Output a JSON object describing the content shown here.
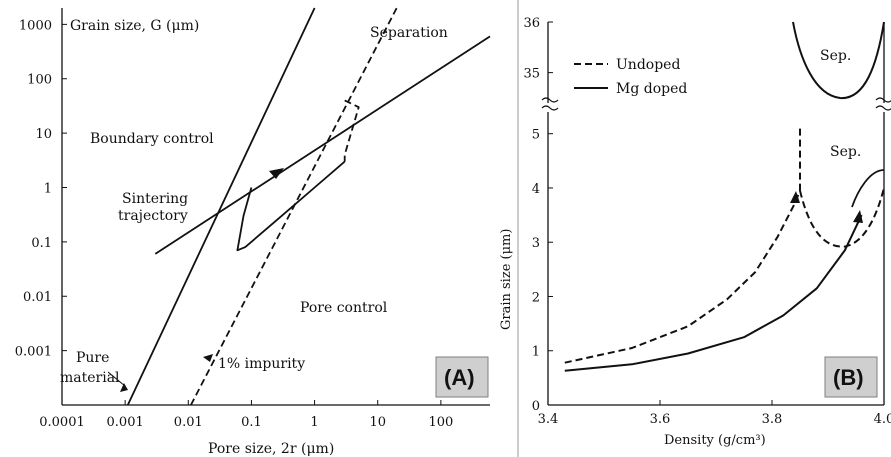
{
  "chart_data": [
    {
      "panel": "(A)",
      "type": "line",
      "xscale": "log",
      "yscale": "log",
      "xlabel": "Pore size, 2r (μm)",
      "ylabel": "Grain size, G (μm)",
      "xticks": [
        "0.0001",
        "0.001",
        "0.01",
        "0.1",
        "1",
        "10",
        "100"
      ],
      "yticks": [
        "1000",
        "100",
        "10",
        "1",
        "0.1",
        "0.01",
        "0.001"
      ],
      "xlim": [
        0.0001,
        600
      ],
      "ylim": [
        0.0001,
        2000
      ],
      "annotations": {
        "boundary": "Boundary control",
        "pore": "Pore control",
        "separation": "Separation",
        "trajectory_line1": "Sintering",
        "trajectory_line2": "trajectory",
        "pure_line1": "Pure",
        "pure_line2": "material",
        "impurity": "1% impurity"
      },
      "series": [
        {
          "style": "solid",
          "x": [
            0.0011,
            1.0
          ],
          "y": [
            0.0001,
            2000
          ]
        },
        {
          "style": "solid",
          "x": [
            0.003,
            600
          ],
          "y": [
            0.06,
            600
          ]
        },
        {
          "style": "dashed",
          "x": [
            0.011,
            20
          ],
          "y": [
            0.0001,
            2000
          ]
        },
        {
          "style": "solid",
          "x": [
            0.1,
            0.075,
            0.06,
            0.08,
            0.3,
            1,
            3
          ],
          "y": [
            1,
            0.3,
            0.07,
            0.08,
            0.3,
            1,
            3
          ]
        },
        {
          "style": "dashed",
          "x": [
            3,
            5,
            3,
            3
          ],
          "y": [
            40,
            30,
            4,
            3
          ]
        }
      ]
    },
    {
      "panel": "(B)",
      "type": "line",
      "xlabel": "Density (g/cm³)",
      "ylabel": "Grain size (μm)",
      "xticks": [
        "3.4",
        "3.6",
        "3.8",
        "4.0"
      ],
      "yticks_lower": [
        "0",
        "1",
        "2",
        "3",
        "4",
        "5"
      ],
      "yticks_upper": [
        "35",
        "36"
      ],
      "xlim": [
        3.4,
        4.0
      ],
      "ylim_lower": [
        0,
        5.4
      ],
      "ylim_upper": [
        34.4,
        36
      ],
      "legend_position": "top-left",
      "annotations": {
        "sep_upper": "Sep.",
        "sep_lower": "Sep."
      },
      "series": [
        {
          "name": "Undoped",
          "style": "dashed",
          "x": [
            3.43,
            3.55,
            3.65,
            3.72,
            3.77,
            3.81,
            3.84,
            3.85
          ],
          "y": [
            0.78,
            1.05,
            1.45,
            1.95,
            2.45,
            3.1,
            3.7,
            3.95
          ]
        },
        {
          "name": "Mg doped",
          "style": "solid",
          "x": [
            3.43,
            3.55,
            3.65,
            3.75,
            3.82,
            3.88,
            3.93,
            3.96
          ],
          "y": [
            0.63,
            0.75,
            0.95,
            1.25,
            1.65,
            2.15,
            2.85,
            3.5
          ]
        }
      ]
    }
  ],
  "legend": {
    "undoped": "Undoped",
    "mg_doped": "Mg doped"
  },
  "panel_tags": {
    "a": "(A)",
    "b": "(B)"
  },
  "panel_b_labels": {
    "xlabel": "Density (g/cm³)",
    "ylabel": "Grain size (μm)",
    "sep_upper": "Sep.",
    "sep_lower": "Sep."
  }
}
